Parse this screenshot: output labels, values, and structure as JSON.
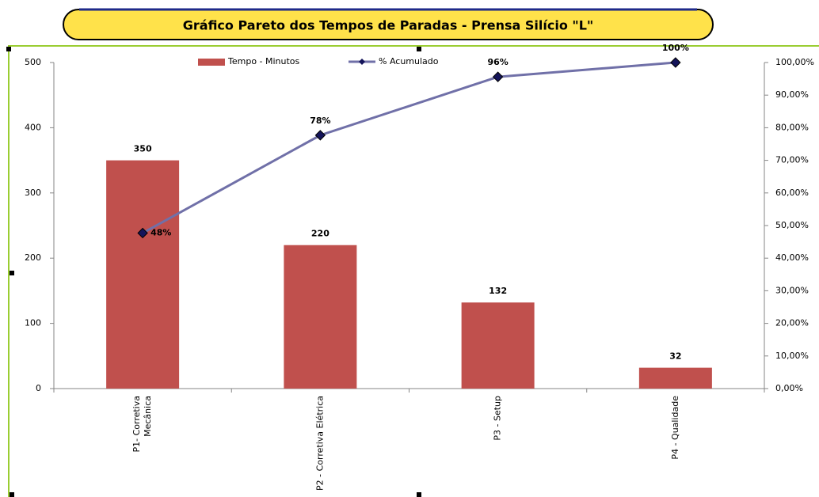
{
  "chart_data": {
    "type": "pareto",
    "title": "Gráfico Pareto dos Tempos de Paradas - Prensa Silício \"L\"",
    "categories": [
      "P1- Corretiva Mecânica",
      "P2 - Corretiva Elétrica",
      "P3 - Setup",
      "P4 - Qualidade"
    ],
    "series": [
      {
        "name": "Tempo - Minutos",
        "color": "#c0504d",
        "type": "bar",
        "values": [
          350,
          220,
          132,
          32
        ]
      },
      {
        "name": "% Acumulado",
        "color": "#7070a8",
        "marker_color": "#14145a",
        "type": "line",
        "axis": "y2",
        "values": [
          47.7,
          77.7,
          95.6,
          100
        ],
        "value_labels": [
          "48%",
          "78%",
          "96%",
          "100%"
        ]
      }
    ],
    "ylim": [
      0,
      500
    ],
    "yticks": [
      0,
      100,
      200,
      300,
      400,
      500
    ],
    "y2lim": [
      0,
      100
    ],
    "y2ticks": [
      {
        "value": 0,
        "label": "0,00%"
      },
      {
        "value": 10,
        "label": "10,00%"
      },
      {
        "value": 20,
        "label": "20,00%"
      },
      {
        "value": 30,
        "label": "30,00%"
      },
      {
        "value": 40,
        "label": "40,00%"
      },
      {
        "value": 50,
        "label": "50,00%"
      },
      {
        "value": 60,
        "label": "60,00%"
      },
      {
        "value": 70,
        "label": "70,00%"
      },
      {
        "value": 80,
        "label": "80,00%"
      },
      {
        "value": 90,
        "label": "90,00%"
      },
      {
        "value": 100,
        "label": "100,00%"
      }
    ],
    "grid": false,
    "legend": "top"
  }
}
